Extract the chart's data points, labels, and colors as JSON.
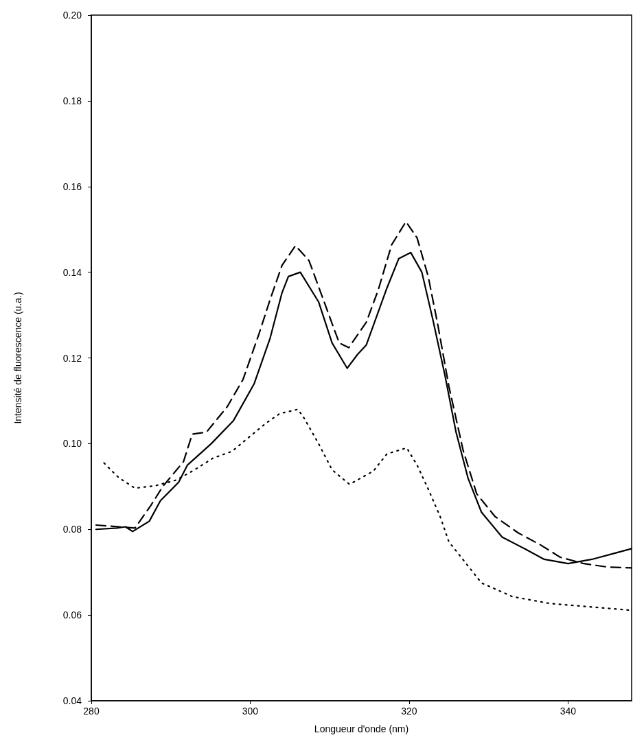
{
  "chart_data": {
    "type": "line",
    "xlabel": "Longueur d'onde (nm)",
    "ylabel": "Intensité de fluorescence (u.a.)",
    "xlim": [
      280,
      348
    ],
    "xticks": [
      280,
      300,
      320,
      340
    ],
    "ylim": [
      0.04,
      0.2
    ],
    "yticks": [
      {
        "value": 0.04,
        "label": "0.04"
      },
      {
        "value": 0.06,
        "label": "0.06"
      },
      {
        "value": 0.08,
        "label": "0.08"
      },
      {
        "value": 0.1,
        "label": "0.10"
      },
      {
        "value": 0.12,
        "label": "0.12"
      },
      {
        "value": 0.14,
        "label": "0.14"
      },
      {
        "value": 0.16,
        "label": "0.16"
      },
      {
        "value": 0.18,
        "label": "0.18"
      },
      {
        "value": 0.2,
        "label": "0.20"
      }
    ],
    "marker": "none",
    "series": [
      {
        "color": "#000000",
        "line_style": "solid",
        "x": [
          280.6,
          283.2,
          284.3,
          285.2,
          287.3,
          288.7,
          291,
          292.1,
          295.1,
          297.9,
          300.5,
          302.5,
          304,
          304.8,
          306.3,
          308.6,
          310.3,
          312.2,
          313.5,
          314.6,
          317.2,
          318.7,
          320.2,
          321.6,
          323,
          324.5,
          325.9,
          327.4,
          329.1,
          331.7,
          334.5,
          337,
          340,
          343,
          346,
          348
        ],
        "values": [
          0.08,
          0.0803,
          0.0806,
          0.0795,
          0.0819,
          0.0867,
          0.091,
          0.095,
          0.1,
          0.1054,
          0.114,
          0.1246,
          0.1352,
          0.139,
          0.14,
          0.1331,
          0.1235,
          0.1176,
          0.1208,
          0.123,
          0.1363,
          0.1432,
          0.1446,
          0.14,
          0.1288,
          0.116,
          0.1027,
          0.092,
          0.084,
          0.0782,
          0.0755,
          0.073,
          0.072,
          0.073,
          0.0745,
          0.0755
        ]
      },
      {
        "color": "#000000",
        "line_style": "dashed",
        "x": [
          280.6,
          285.5,
          287.5,
          289,
          291.6,
          292.7,
          294.5,
          297.1,
          299.1,
          301.1,
          302.5,
          304,
          305.7,
          307.4,
          309.2,
          311.2,
          312.4,
          314.6,
          316.1,
          317.8,
          319.6,
          321,
          322.4,
          323.6,
          325,
          326.8,
          328.5,
          330.8,
          333.7,
          336.6,
          339,
          342,
          345,
          348
        ],
        "values": [
          0.081,
          0.0803,
          0.0856,
          0.09,
          0.0958,
          0.1022,
          0.1027,
          0.1086,
          0.115,
          0.1256,
          0.1336,
          0.1416,
          0.1462,
          0.1427,
          0.1336,
          0.1235,
          0.1224,
          0.1283,
          0.1358,
          0.1464,
          0.1518,
          0.148,
          0.139,
          0.1278,
          0.1134,
          0.0984,
          0.0883,
          0.083,
          0.0792,
          0.0763,
          0.0735,
          0.072,
          0.0712,
          0.071
        ]
      },
      {
        "color": "#000000",
        "line_style": "dotted",
        "x": [
          281.6,
          282.6,
          283.5,
          285.5,
          288.1,
          290.7,
          293,
          295.3,
          297.7,
          299.9,
          302,
          303.7,
          306,
          306.8,
          308.6,
          310.3,
          312.5,
          315.5,
          317.2,
          319.7,
          321,
          322.4,
          323.9,
          325,
          329.1,
          333,
          337.7,
          348
        ],
        "values": [
          0.0955,
          0.0936,
          0.092,
          0.0896,
          0.0902,
          0.0915,
          0.0939,
          0.0966,
          0.0982,
          0.1016,
          0.1048,
          0.107,
          0.108,
          0.1059,
          0.1,
          0.0939,
          0.0905,
          0.0936,
          0.0976,
          0.099,
          0.095,
          0.0894,
          0.083,
          0.0771,
          0.0675,
          0.0643,
          0.0627,
          0.0611
        ]
      }
    ]
  }
}
